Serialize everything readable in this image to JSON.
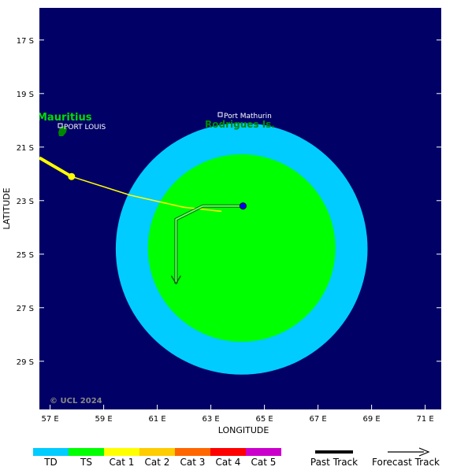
{
  "axes": {
    "xlabel": "LONGITUDE",
    "ylabel": "LATITUDE",
    "lon_range": [
      56.6,
      71.6
    ],
    "lat_range": [
      -15.8,
      -30.8
    ],
    "lon_ticks": [
      {
        "value": 57,
        "label": "57 E"
      },
      {
        "value": 59,
        "label": "59 E"
      },
      {
        "value": 61,
        "label": "61 E"
      },
      {
        "value": 63,
        "label": "63 E"
      },
      {
        "value": 65,
        "label": "65 E"
      },
      {
        "value": 67,
        "label": "67 E"
      },
      {
        "value": 69,
        "label": "69 E"
      },
      {
        "value": 71,
        "label": "71 E"
      }
    ],
    "lat_ticks": [
      {
        "value": -17,
        "label": "17 S"
      },
      {
        "value": -19,
        "label": "19 S"
      },
      {
        "value": -21,
        "label": "21 S"
      },
      {
        "value": -23,
        "label": "23 S"
      },
      {
        "value": -25,
        "label": "25 S"
      },
      {
        "value": -27,
        "label": "27 S"
      },
      {
        "value": -29,
        "label": "29 S"
      }
    ]
  },
  "places": {
    "mauritius": "Mauritius",
    "port_louis": "PORT LOUIS",
    "rodrigues": "Rodrigues Is.",
    "port_mathurin": "Port Mathurin"
  },
  "copyright": "© UCL 2024",
  "colors": {
    "ocean": "#000066",
    "ts_wind": "#00ff00",
    "td_wind": "#00ccff",
    "track": "#ffff00",
    "land": "#008800",
    "storm_center": "#0000ff"
  },
  "storm": {
    "center": {
      "lon": 64.2,
      "lat": -23.2
    },
    "wind_field_center": {
      "lon": 64.15,
      "lat": -24.8
    },
    "past_track": [
      {
        "lon": 56.6,
        "lat": -21.4
      },
      {
        "lon": 57.8,
        "lat": -22.1
      },
      {
        "lon": 60.0,
        "lat": -22.8
      },
      {
        "lon": 62.0,
        "lat": -23.25
      },
      {
        "lon": 63.4,
        "lat": -23.4
      }
    ],
    "track_points": [
      {
        "lon": 57.8,
        "lat": -22.1
      }
    ],
    "forecast_track": [
      {
        "lon": 64.2,
        "lat": -23.2
      },
      {
        "lon": 62.7,
        "lat": -23.2
      },
      {
        "lon": 61.7,
        "lat": -23.7
      },
      {
        "lon": 61.7,
        "lat": -26.1
      }
    ]
  },
  "legend": {
    "categories": [
      {
        "label": "TD",
        "color": "#00ccff"
      },
      {
        "label": "TS",
        "color": "#00ff00"
      },
      {
        "label": "Cat 1",
        "color": "#ffff00"
      },
      {
        "label": "Cat 2",
        "color": "#ffcc00"
      },
      {
        "label": "Cat 3",
        "color": "#ff6600"
      },
      {
        "label": "Cat 4",
        "color": "#ff0000"
      },
      {
        "label": "Cat 5",
        "color": "#cc00cc"
      }
    ],
    "past_track": "Past Track",
    "forecast_track": "Forecast Track"
  }
}
